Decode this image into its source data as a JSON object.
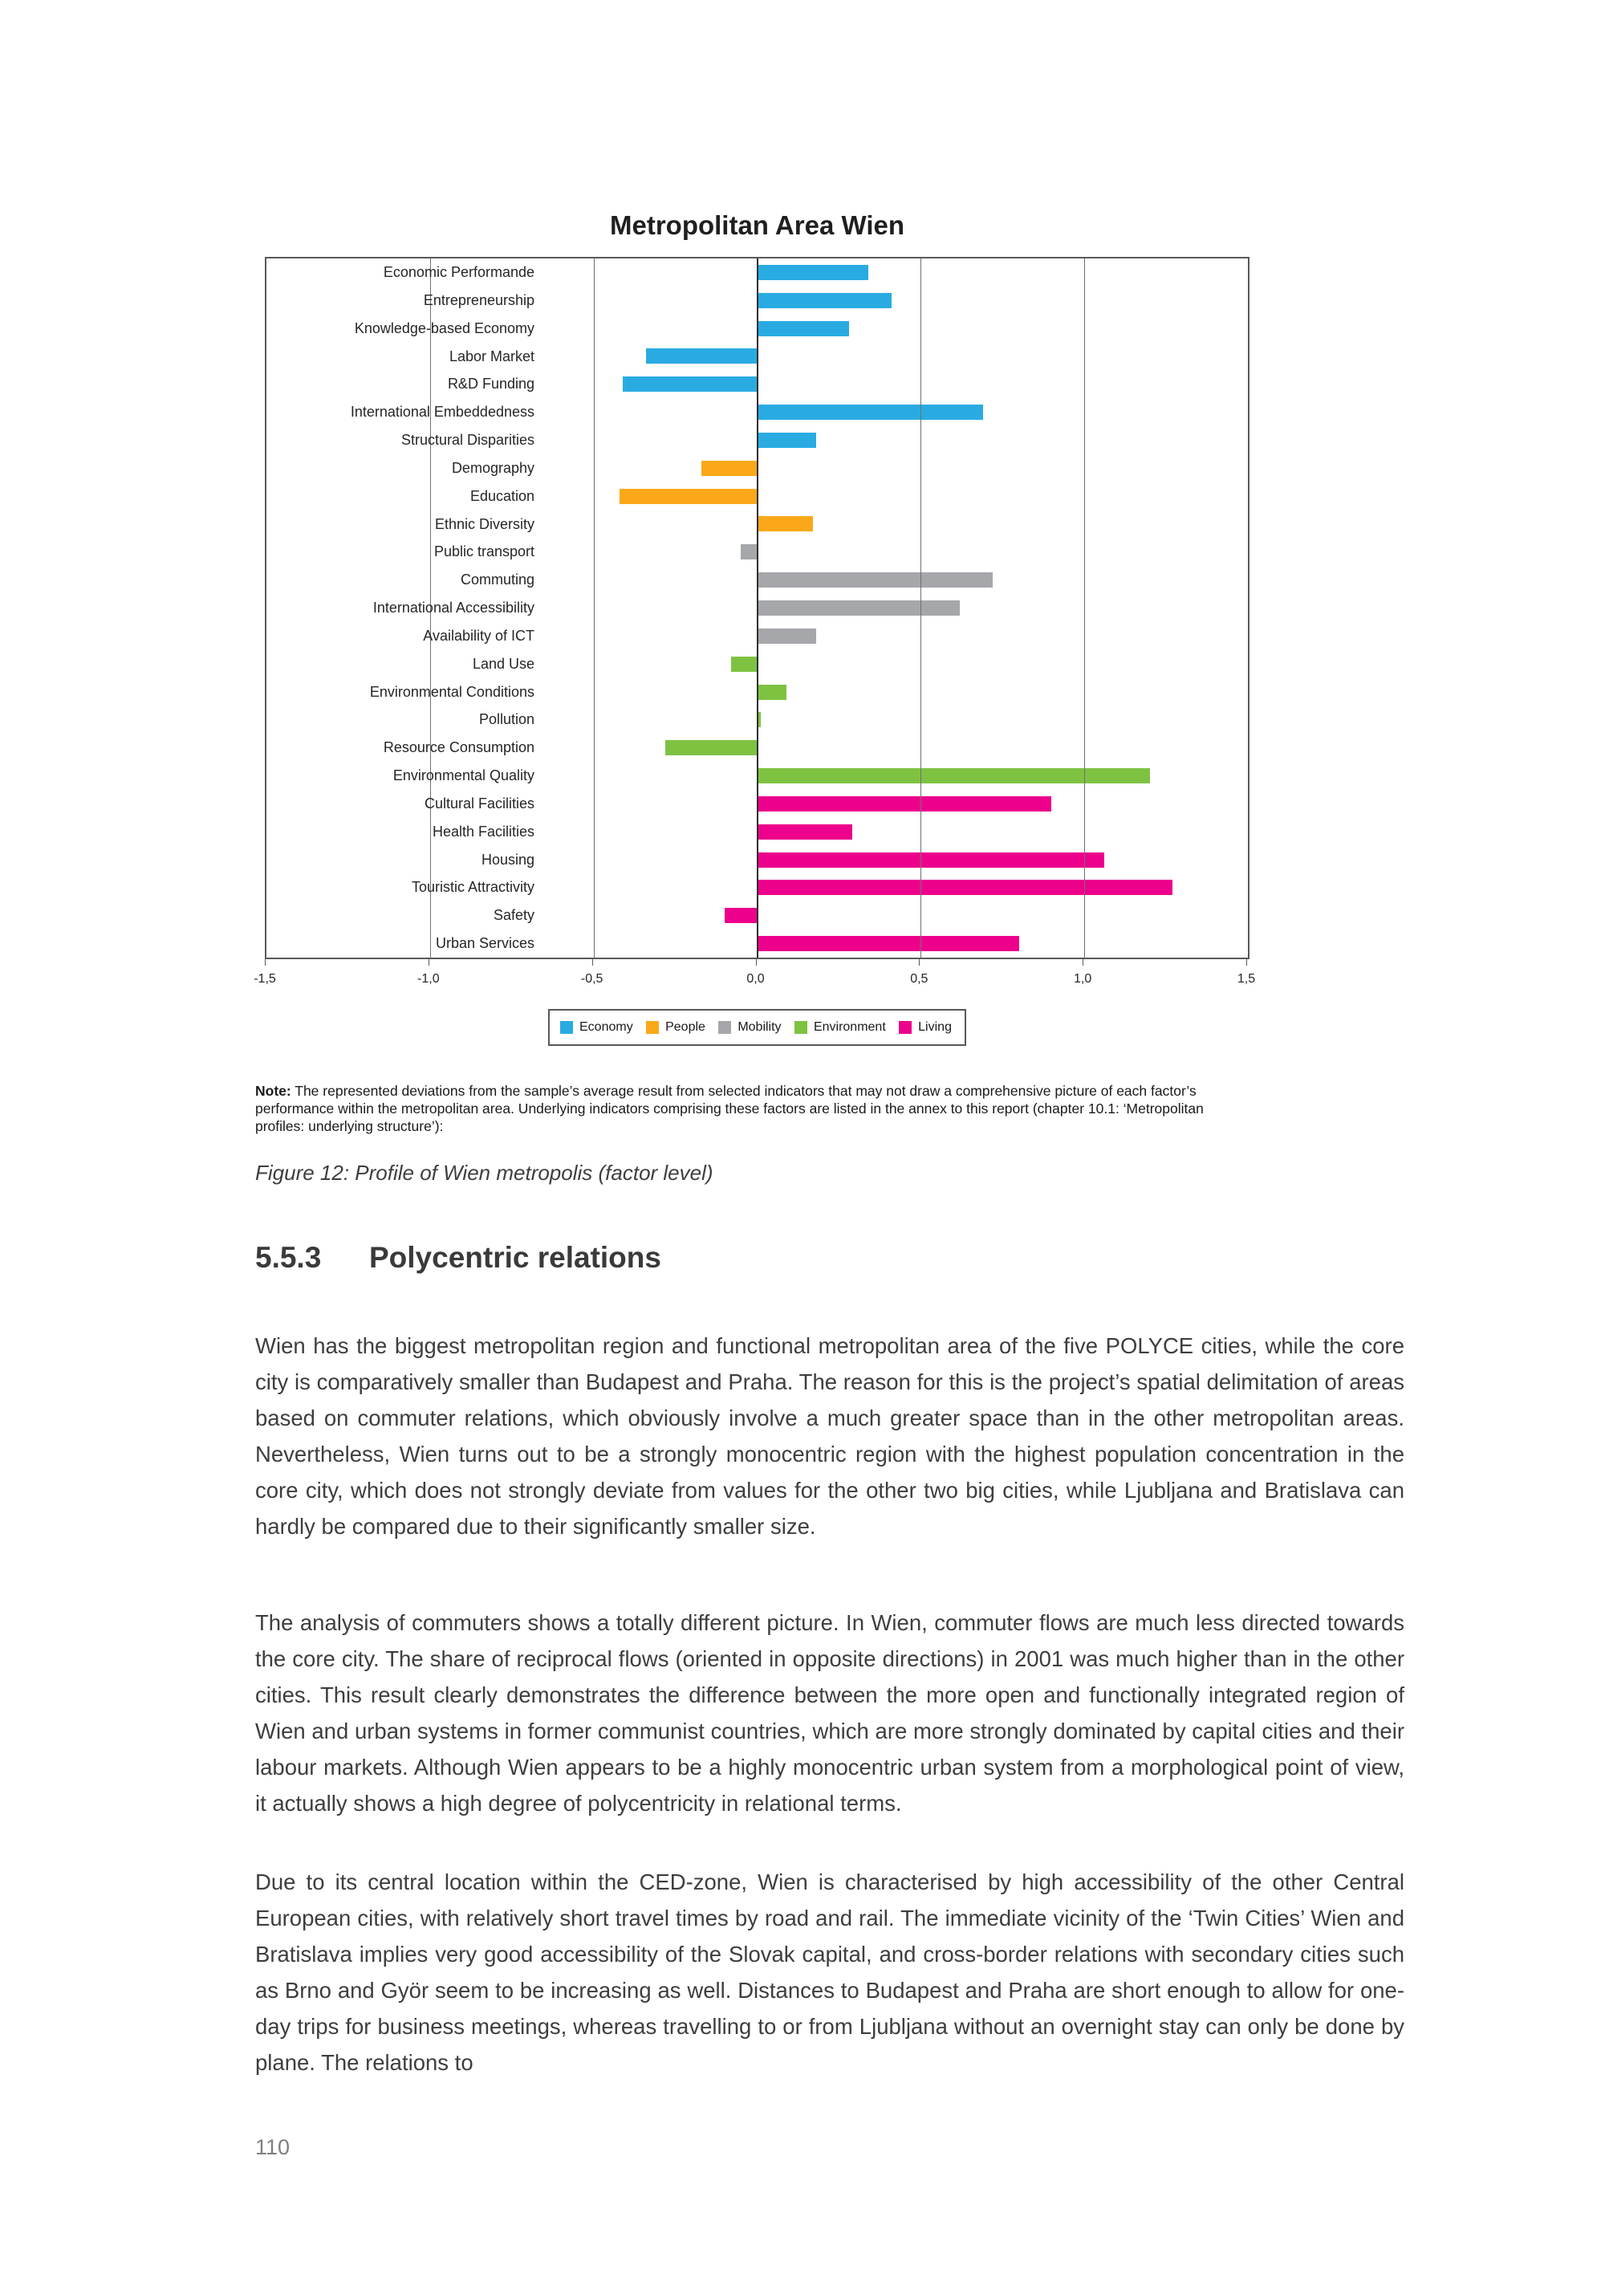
{
  "chart_data": {
    "type": "bar",
    "orientation": "horizontal",
    "title": "Metropolitan Area Wien",
    "xlabel": "",
    "ylabel": "",
    "xlim": [
      -1.5,
      1.5
    ],
    "x_tick_values": [
      -1.5,
      -1.0,
      -0.5,
      0.0,
      0.5,
      1.0,
      1.5
    ],
    "x_tick_labels": [
      "-1,5",
      "-1,0",
      "-0,5",
      "0,0",
      "0,5",
      "1,0",
      "1,5"
    ],
    "grid": "vertical gridlines every 0.5",
    "legend_position": "bottom",
    "series": [
      {
        "name": "Economy",
        "color": "#29ABE2"
      },
      {
        "name": "People",
        "color": "#FAA819"
      },
      {
        "name": "Mobility",
        "color": "#A5A7AA"
      },
      {
        "name": "Environment",
        "color": "#7EC242"
      },
      {
        "name": "Living",
        "color": "#EC008C"
      }
    ],
    "categories": [
      {
        "label": "Economic Performande",
        "group": "Economy",
        "value": 0.34
      },
      {
        "label": "Entrepreneurship",
        "group": "Economy",
        "value": 0.41
      },
      {
        "label": "Knowledge-based Economy",
        "group": "Economy",
        "value": 0.28
      },
      {
        "label": "Labor Market",
        "group": "Economy",
        "value": -0.34
      },
      {
        "label": "R&D Funding",
        "group": "Economy",
        "value": -0.41
      },
      {
        "label": "International Embeddedness",
        "group": "Economy",
        "value": 0.69
      },
      {
        "label": "Structural Disparities",
        "group": "Economy",
        "value": 0.18
      },
      {
        "label": "Demography",
        "group": "People",
        "value": -0.17
      },
      {
        "label": "Education",
        "group": "People",
        "value": -0.42
      },
      {
        "label": "Ethnic Diversity",
        "group": "People",
        "value": 0.17
      },
      {
        "label": "Public transport",
        "group": "Mobility",
        "value": -0.05
      },
      {
        "label": "Commuting",
        "group": "Mobility",
        "value": 0.72
      },
      {
        "label": "International Accessibility",
        "group": "Mobility",
        "value": 0.62
      },
      {
        "label": "Availability of ICT",
        "group": "Mobility",
        "value": 0.18
      },
      {
        "label": "Land Use",
        "group": "Environment",
        "value": -0.08
      },
      {
        "label": "Environmental Conditions",
        "group": "Environment",
        "value": 0.09
      },
      {
        "label": "Pollution",
        "group": "Environment",
        "value": 0.01
      },
      {
        "label": "Resource Consumption",
        "group": "Environment",
        "value": -0.28
      },
      {
        "label": "Environmental Quality",
        "group": "Environment",
        "value": 1.2
      },
      {
        "label": "Cultural Facilities",
        "group": "Living",
        "value": 0.9
      },
      {
        "label": "Health Facilities",
        "group": "Living",
        "value": 0.29
      },
      {
        "label": "Housing",
        "group": "Living",
        "value": 1.06
      },
      {
        "label": "Touristic Attractivity",
        "group": "Living",
        "value": 1.27
      },
      {
        "label": "Safety",
        "group": "Living",
        "value": -0.1
      },
      {
        "label": "Urban Services",
        "group": "Living",
        "value": 0.8
      }
    ]
  },
  "note": {
    "label": "Note:",
    "text": " The represented deviations from the sample’s average result from selected indicators that may not draw a comprehensive picture of each factor’s performance within the metropolitan area. Underlying indicators comprising these factors are listed in the annex to this report (chapter 10.1: ‘Metropolitan profiles: underlying structure’):"
  },
  "figure_caption": "Figure 12: Profile of Wien metropolis (factor level)",
  "section": {
    "number": "5.5.3",
    "title": "Polycentric relations"
  },
  "paragraphs": [
    "Wien has the biggest metropolitan region and functional metropolitan area of the five POLYCE cities, while the core city is comparatively smaller than Budapest and Praha. The reason for this is the project’s spatial delimitation of areas based on commuter relations, which obviously involve a much greater space than in the other metropolitan areas. Nevertheless, Wien turns out to be a strongly monocentric region with the highest population concentration in the core city, which does not strongly deviate from values for the other two big cities, while Ljubljana and Bratislava can hardly be compared due to their significantly smaller size.",
    "The analysis of commuters shows a totally different picture. In Wien, commuter flows are much less directed towards the core city. The share of reciprocal flows (oriented in opposite directions) in 2001 was much higher than in the other cities. This result clearly demonstrates the difference between the more open and functionally integrated region of Wien and urban systems in former communist countries, which are more strongly dominated by capital cities and their labour markets. Although Wien appears to be a highly monocentric urban system from a morphological point of view, it actually shows a high degree of polycentricity in relational terms.",
    "Due to its central location within the CED-zone, Wien is characterised by high accessibility of the other Central European cities, with relatively short travel times by road and rail. The immediate vicinity of the ‘Twin Cities’ Wien and Bratislava implies very good accessibility of the Slovak capital, and cross-border relations with secondary cities such as Brno and Györ seem to be increasing as well. Distances to Budapest and Praha are short enough to allow for one-day trips for business meetings, whereas travelling to or from Ljubljana without an overnight stay can only be done by plane. The relations to"
  ],
  "page_number": "110"
}
